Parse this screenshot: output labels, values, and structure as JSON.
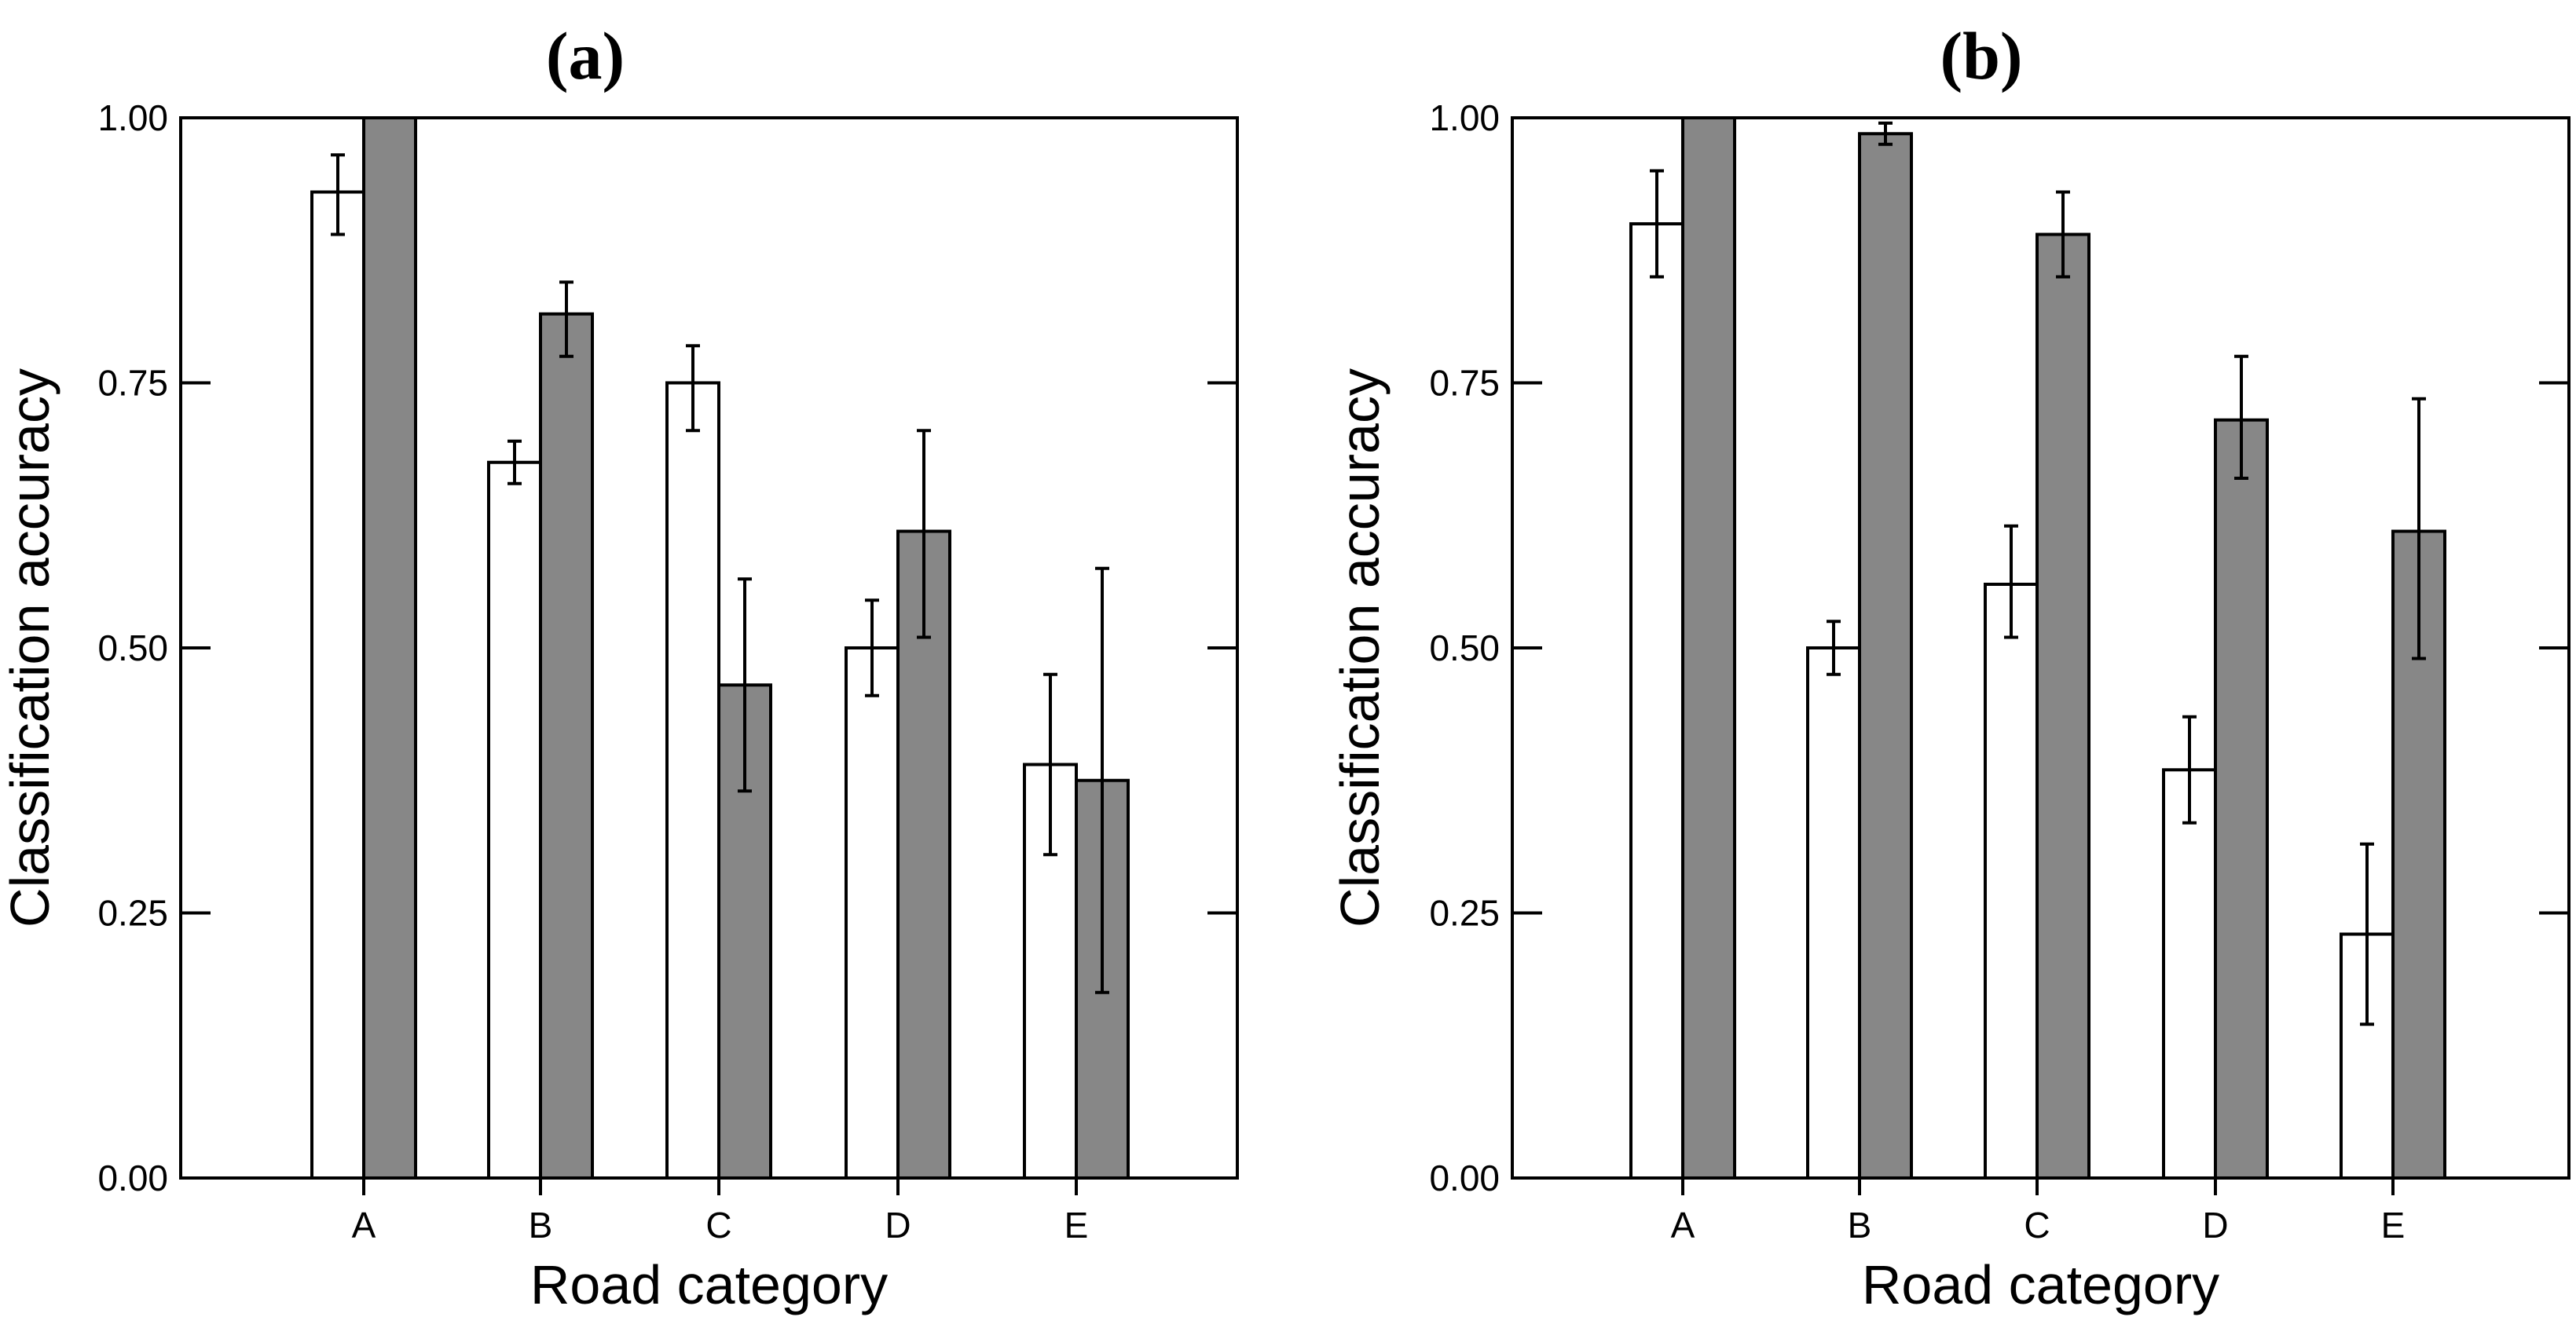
{
  "colors": {
    "series_a": "#ffffff",
    "series_b": "#878787",
    "stroke": "#000000"
  },
  "chart_data": [
    {
      "type": "bar",
      "title": "(a)",
      "xlabel": "Road category",
      "ylabel": "Classification accuracy",
      "categories": [
        "A",
        "B",
        "C",
        "D",
        "E"
      ],
      "yticks": [
        "0.00",
        "0.25",
        "0.50",
        "0.75",
        "1.00"
      ],
      "ylim": [
        0,
        1
      ],
      "series": [
        {
          "name": "white",
          "values": [
            0.93,
            0.675,
            0.75,
            0.5,
            0.39
          ],
          "err_low": [
            0.89,
            0.655,
            0.705,
            0.455,
            0.305
          ],
          "err_high": [
            0.965,
            0.695,
            0.785,
            0.545,
            0.475
          ]
        },
        {
          "name": "gray",
          "values": [
            1.0,
            0.815,
            0.465,
            0.61,
            0.375
          ],
          "err_low": null,
          "err_high": null,
          "err_low_vals": [
            1.0,
            0.775,
            0.365,
            0.51,
            0.175
          ],
          "err_high_vals": [
            1.0,
            0.845,
            0.565,
            0.705,
            0.575
          ]
        }
      ]
    },
    {
      "type": "bar",
      "title": "(b)",
      "xlabel": "Road category",
      "ylabel": "Classification accuracy",
      "categories": [
        "A",
        "B",
        "C",
        "D",
        "E"
      ],
      "yticks": [
        "0.00",
        "0.25",
        "0.50",
        "0.75",
        "1.00"
      ],
      "ylim": [
        0,
        1
      ],
      "series": [
        {
          "name": "white",
          "values": [
            0.9,
            0.5,
            0.56,
            0.385,
            0.23
          ],
          "err_low": [
            0.85,
            0.475,
            0.51,
            0.335,
            0.145
          ],
          "err_high": [
            0.95,
            0.525,
            0.615,
            0.435,
            0.315
          ]
        },
        {
          "name": "gray",
          "values": [
            1.0,
            0.985,
            0.89,
            0.715,
            0.61
          ],
          "err_low": null,
          "err_high": null,
          "err_low_vals": [
            1.0,
            0.975,
            0.85,
            0.66,
            0.49
          ],
          "err_high_vals": [
            1.0,
            0.995,
            0.93,
            0.775,
            0.735
          ]
        }
      ]
    }
  ]
}
